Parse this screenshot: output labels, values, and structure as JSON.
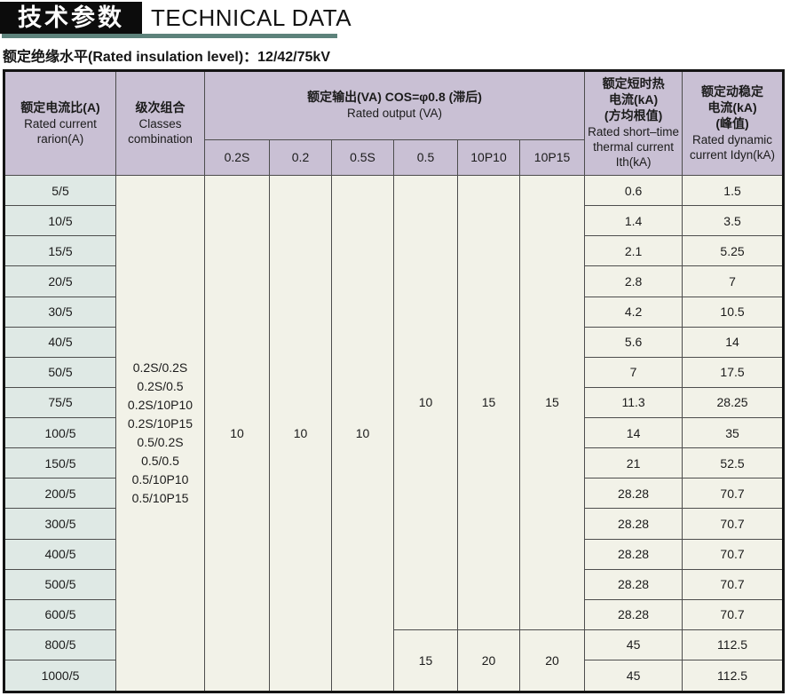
{
  "page": {
    "title_zh": "技术参数",
    "title_en": "TECHNICAL DATA",
    "subtitle": "额定绝缘水平(Rated insulation level)：12/42/75kV"
  },
  "colors": {
    "accent_teal": "#5d827b",
    "title_box_black": "#0c0c0c",
    "header_purple": "#c9c0d4",
    "row_label_green": "#dfe9e5",
    "cell_cream": "#f2f2e8",
    "grid_line": "#4d4d4d"
  },
  "table": {
    "headers": {
      "ratio_lines": [
        "额定电流比(A)",
        "Rated current",
        "rarion(A)"
      ],
      "classes_lines": [
        "级次组合",
        "Classes",
        "combination"
      ],
      "output_lines": [
        "额定输出(VA) COS=φ0.8 (滞后)",
        "Rated output (VA)"
      ],
      "output_subcols": [
        "0.2S",
        "0.2",
        "0.5S",
        "0.5",
        "10P10",
        "10P15"
      ],
      "ith_lines": [
        "额定短时热",
        "电流(kA)",
        "(方均根值)",
        "Rated short–time",
        "thermal current",
        "Ith(kA)"
      ],
      "idyn_lines": [
        "额定动稳定",
        "电流(kA)",
        "(峰值)",
        "Rated dynamic",
        "current Idyn(kA)"
      ]
    },
    "classes_combination": [
      "0.2S/0.2S",
      "0.2S/0.5",
      "0.2S/10P10",
      "0.2S/10P15",
      "0.5/0.2S",
      "0.5/0.5",
      "0.5/10P10",
      "0.5/10P15"
    ],
    "output_full_span": [
      "10",
      "10",
      "10"
    ],
    "output_group_a": [
      "10",
      "15",
      "15"
    ],
    "output_group_b": [
      "15",
      "20",
      "20"
    ],
    "group_a_rows": 15,
    "group_b_rows": 2,
    "rows": [
      {
        "ratio": "5/5",
        "ith": "0.6",
        "idyn": "1.5"
      },
      {
        "ratio": "10/5",
        "ith": "1.4",
        "idyn": "3.5"
      },
      {
        "ratio": "15/5",
        "ith": "2.1",
        "idyn": "5.25"
      },
      {
        "ratio": "20/5",
        "ith": "2.8",
        "idyn": "7"
      },
      {
        "ratio": "30/5",
        "ith": "4.2",
        "idyn": "10.5"
      },
      {
        "ratio": "40/5",
        "ith": "5.6",
        "idyn": "14"
      },
      {
        "ratio": "50/5",
        "ith": "7",
        "idyn": "17.5"
      },
      {
        "ratio": "75/5",
        "ith": "11.3",
        "idyn": "28.25"
      },
      {
        "ratio": "100/5",
        "ith": "14",
        "idyn": "35"
      },
      {
        "ratio": "150/5",
        "ith": "21",
        "idyn": "52.5"
      },
      {
        "ratio": "200/5",
        "ith": "28.28",
        "idyn": "70.7"
      },
      {
        "ratio": "300/5",
        "ith": "28.28",
        "idyn": "70.7"
      },
      {
        "ratio": "400/5",
        "ith": "28.28",
        "idyn": "70.7"
      },
      {
        "ratio": "500/5",
        "ith": "28.28",
        "idyn": "70.7"
      },
      {
        "ratio": "600/5",
        "ith": "28.28",
        "idyn": "70.7"
      },
      {
        "ratio": "800/5",
        "ith": "45",
        "idyn": "112.5"
      },
      {
        "ratio": "1000/5",
        "ith": "45",
        "idyn": "112.5"
      }
    ]
  }
}
